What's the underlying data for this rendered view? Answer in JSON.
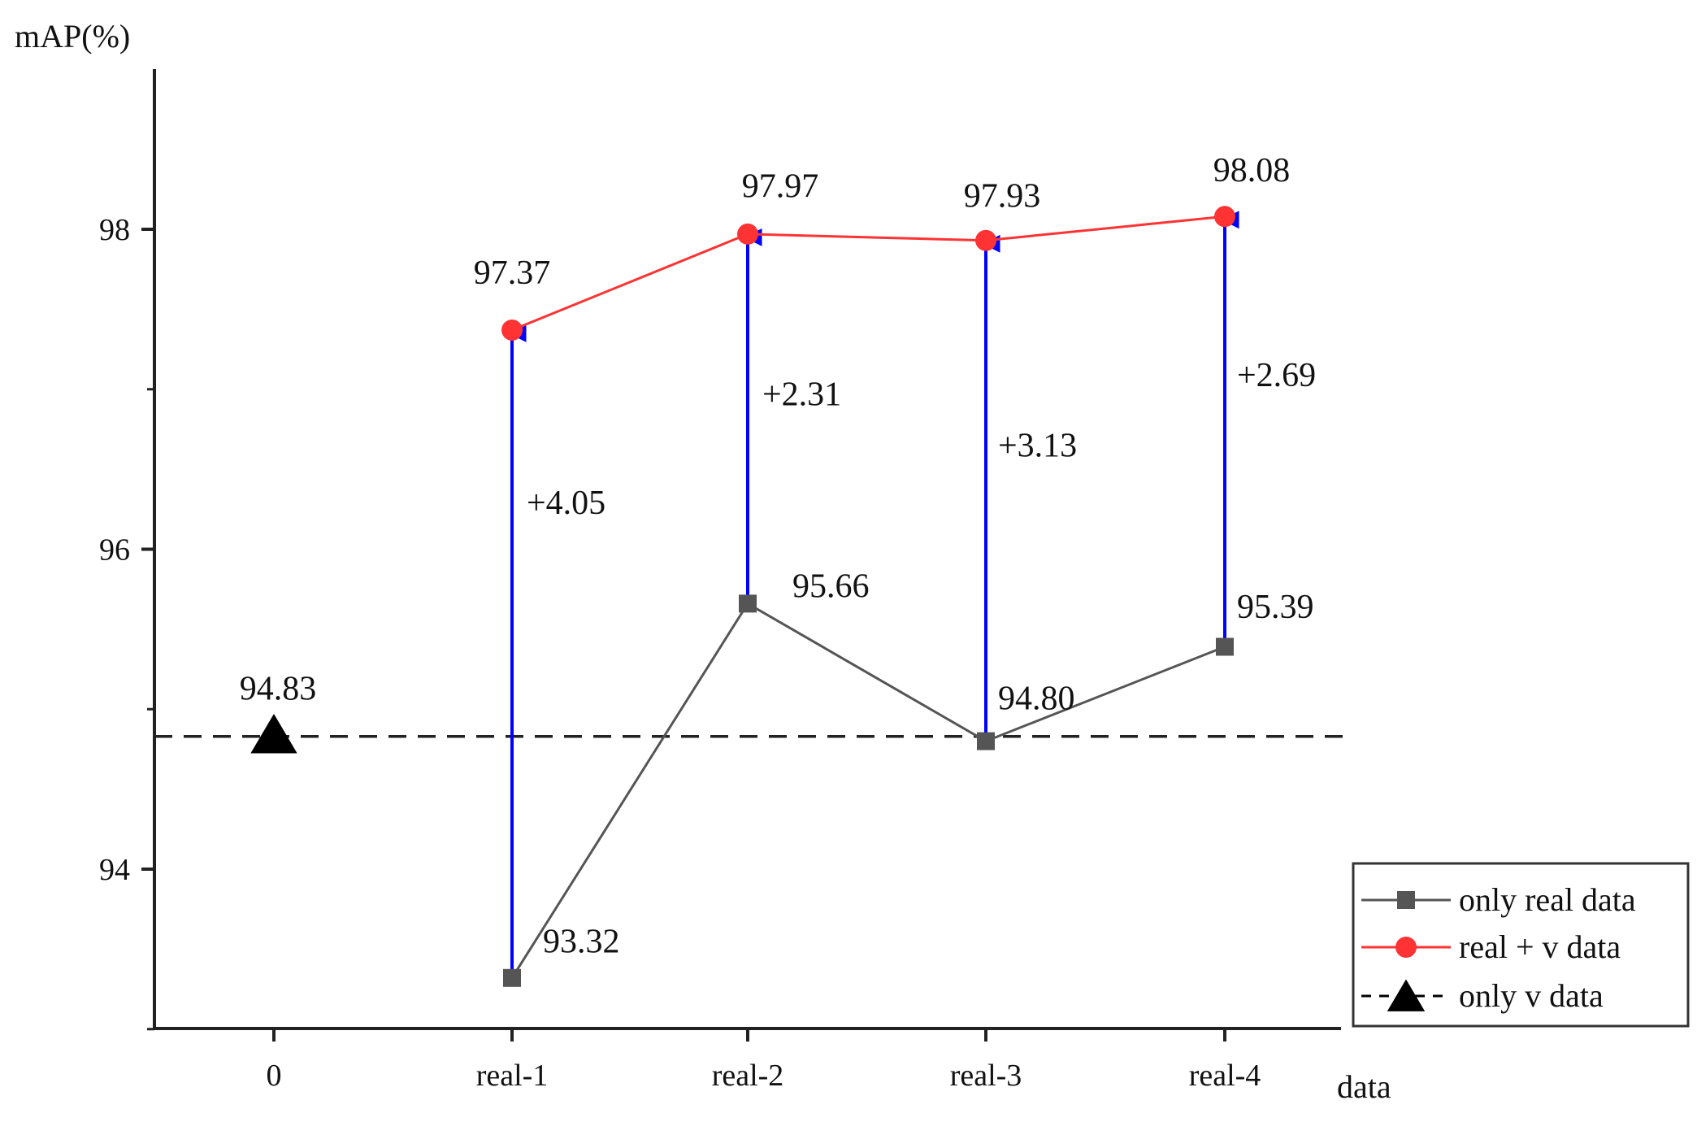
{
  "chart_data": {
    "type": "line",
    "title": "",
    "xlabel": "data",
    "ylabel": "mAP(%)",
    "categories": [
      "0",
      "real-1",
      "real-2",
      "real-3",
      "real-4"
    ],
    "yticks": [
      "94",
      "96",
      "98"
    ],
    "ylim": [
      93.0,
      99.0
    ],
    "series": [
      {
        "name": "only real data",
        "color": "#555555",
        "marker": "square",
        "x": [
          "real-1",
          "real-2",
          "real-3",
          "real-4"
        ],
        "values": [
          93.32,
          95.66,
          94.8,
          95.39
        ],
        "labels": [
          "93.32",
          "95.66",
          "94.80",
          "95.39"
        ]
      },
      {
        "name": "real + v data",
        "color": "#ff3333",
        "marker": "circle",
        "x": [
          "real-1",
          "real-2",
          "real-3",
          "real-4"
        ],
        "values": [
          97.37,
          97.97,
          97.93,
          98.08
        ],
        "labels": [
          "97.37",
          "97.97",
          "97.93",
          "98.08"
        ]
      },
      {
        "name": "only v data",
        "color": "#000000",
        "marker": "triangle",
        "line_style": "dashed",
        "x": [
          "0"
        ],
        "values": [
          94.83
        ],
        "labels": [
          "94.83"
        ]
      }
    ],
    "improvements": [
      {
        "x": "real-1",
        "from": 93.32,
        "to": 97.37,
        "label": "+4.05"
      },
      {
        "x": "real-2",
        "from": 95.66,
        "to": 97.97,
        "label": "+2.31"
      },
      {
        "x": "real-3",
        "from": 94.8,
        "to": 97.93,
        "label": "+3.13"
      },
      {
        "x": "real-4",
        "from": 95.39,
        "to": 98.08,
        "label": "+2.69"
      }
    ],
    "improvement_color": "#0000ff",
    "legend_position": "bottom-right",
    "grid": false
  }
}
